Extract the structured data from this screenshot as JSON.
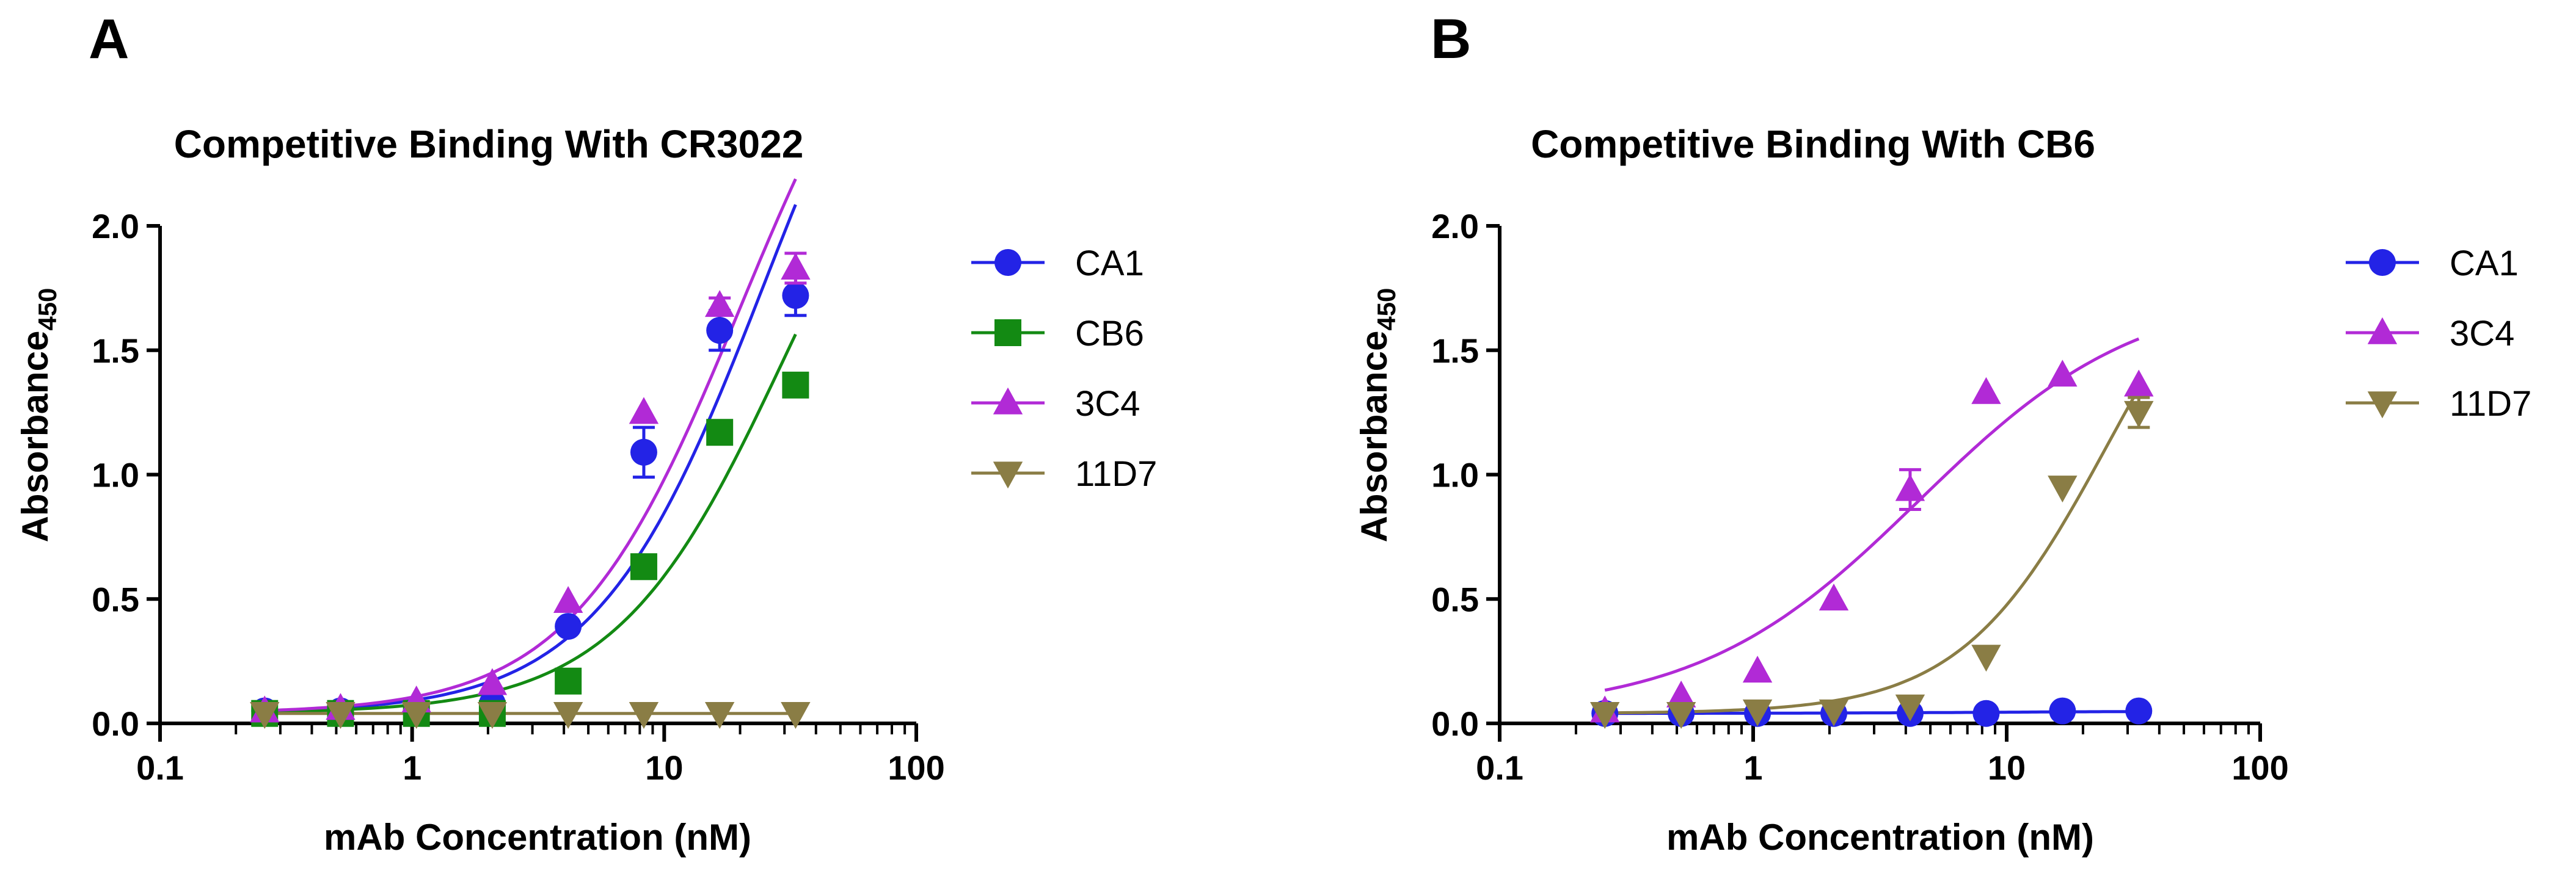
{
  "panels": [
    {
      "letter": "A",
      "title": "Competitive Binding With CR3022",
      "ylabel_main": "Absorbance",
      "ylabel_sub": "450",
      "xlabel": "mAb Concentration (nM)"
    },
    {
      "letter": "B",
      "title": "Competitive Binding With CB6",
      "ylabel_main": "Absorbance",
      "ylabel_sub": "450",
      "xlabel": "mAb Concentration (nM)"
    }
  ],
  "colors": {
    "CA1": "#2323e6",
    "CB6": "#138a13",
    "3C4": "#b12ad6",
    "11D7": "#8a7d45",
    "axis": "#000000"
  },
  "chart_data": [
    {
      "type": "scatter",
      "title": "Competitive Binding With CR3022",
      "xlabel": "mAb Concentration (nM)",
      "ylabel": "Absorbance450",
      "xscale": "log",
      "xlim": [
        0.1,
        100
      ],
      "ylim": [
        0,
        2.0
      ],
      "x_ticks": [
        "0.1",
        "1",
        "10",
        "100"
      ],
      "y_ticks": [
        "0.0",
        "0.5",
        "1.0",
        "1.5",
        "2.0"
      ],
      "baseline": "dotted line at y=0",
      "legend_position": "right",
      "x": [
        0.26,
        0.52,
        1.04,
        2.08,
        4.16,
        8.3,
        16.6,
        33.2
      ],
      "series": [
        {
          "name": "CA1",
          "marker": "circle",
          "values": [
            0.05,
            0.05,
            0.05,
            0.08,
            0.39,
            1.09,
            1.58,
            1.72
          ],
          "errors": [
            0,
            0,
            0,
            0,
            0,
            0.1,
            0.08,
            0.08
          ],
          "fit": {
            "bottom": 0.04,
            "top": 3.5,
            "ec50": 25,
            "hill": 1.3
          }
        },
        {
          "name": "CB6",
          "marker": "square",
          "values": [
            0.04,
            0.04,
            0.04,
            0.04,
            0.17,
            0.63,
            1.17,
            1.36
          ],
          "errors": [
            0,
            0,
            0,
            0,
            0,
            0,
            0,
            0
          ],
          "fit": {
            "bottom": 0.04,
            "top": 2.9,
            "ec50": 30,
            "hill": 1.3
          }
        },
        {
          "name": "3C4",
          "marker": "triangle-up",
          "values": [
            0.05,
            0.06,
            0.09,
            0.16,
            0.49,
            1.25,
            1.68,
            1.83
          ],
          "errors": [
            0,
            0,
            0,
            0,
            0,
            0,
            0.03,
            0.06
          ],
          "fit": {
            "bottom": 0.04,
            "top": 3.3,
            "ec50": 20,
            "hill": 1.3
          }
        },
        {
          "name": "11D7",
          "marker": "triangle-down",
          "values": [
            0.04,
            0.04,
            0.04,
            0.04,
            0.04,
            0.04,
            0.04,
            0.04
          ],
          "errors": [
            0,
            0,
            0,
            0,
            0,
            0,
            0,
            0
          ],
          "fit": {
            "bottom": 0.04,
            "top": 0.04,
            "ec50": 10,
            "hill": 1
          }
        }
      ]
    },
    {
      "type": "scatter",
      "title": "Competitive Binding With CB6",
      "xlabel": "mAb Concentration (nM)",
      "ylabel": "Absorbance450",
      "xscale": "log",
      "xlim": [
        0.1,
        100
      ],
      "ylim": [
        0,
        2.0
      ],
      "x_ticks": [
        "0.1",
        "1",
        "10",
        "100"
      ],
      "y_ticks": [
        "0.0",
        "0.5",
        "1.0",
        "1.5",
        "2.0"
      ],
      "baseline": "dotted line at y=0",
      "legend_position": "right",
      "x": [
        0.26,
        0.52,
        1.04,
        2.08,
        4.16,
        8.3,
        16.6,
        33.2
      ],
      "series": [
        {
          "name": "CA1",
          "marker": "circle",
          "values": [
            0.04,
            0.04,
            0.04,
            0.04,
            0.04,
            0.04,
            0.05,
            0.05
          ],
          "errors": [
            0,
            0,
            0,
            0,
            0,
            0,
            0,
            0
          ],
          "fit": {
            "bottom": 0.04,
            "top": 0.05,
            "ec50": 10,
            "hill": 1
          }
        },
        {
          "name": "3C4",
          "marker": "triangle-up",
          "values": [
            0.05,
            0.11,
            0.21,
            0.5,
            0.94,
            1.33,
            1.4,
            1.36
          ],
          "errors": [
            0,
            0,
            0,
            0,
            0.08,
            0,
            0,
            0
          ],
          "fit": {
            "bottom": 0.04,
            "top": 1.75,
            "ec50": 4.5,
            "hill": 1.0
          }
        },
        {
          "name": "11D7",
          "marker": "triangle-down",
          "values": [
            0.04,
            0.04,
            0.05,
            0.05,
            0.07,
            0.27,
            0.95,
            1.25
          ],
          "errors": [
            0,
            0,
            0,
            0,
            0,
            0,
            0,
            0.06
          ],
          "fit": {
            "bottom": 0.04,
            "top": 2.2,
            "ec50": 25,
            "hill": 1.5
          }
        }
      ]
    }
  ]
}
